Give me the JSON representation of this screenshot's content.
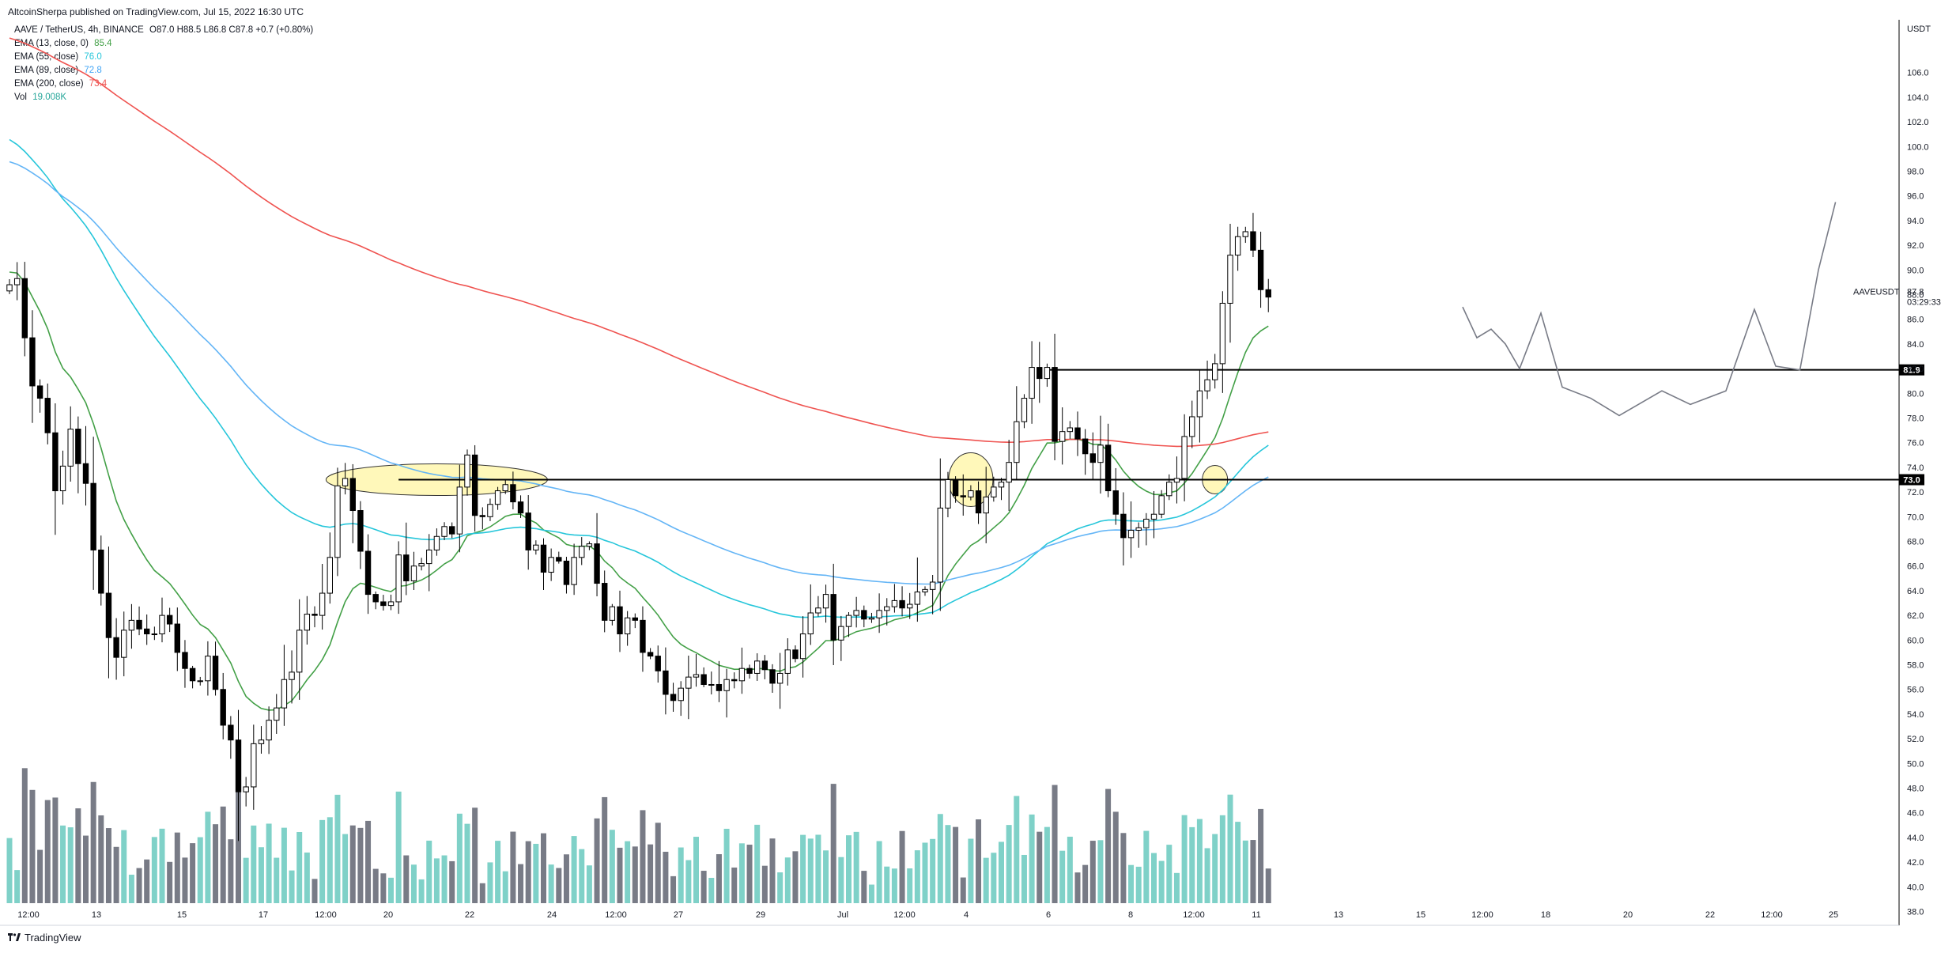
{
  "header": {
    "publish_line": "AltcoinSherpa published on TradingView.com, Jul 15, 2022 16:30 UTC"
  },
  "legend": {
    "symbol": "AAVE / TetherUS, 4h, BINANCE",
    "ohlc": "O87.0  H88.5  L86.8  C87.8  +0.7 (+0.80%)",
    "ema13_label": "EMA (13, close, 0)",
    "ema13_value": "85.4",
    "ema55_label": "EMA (55, close)",
    "ema55_value": "76.0",
    "ema89_label": "EMA (89, close)",
    "ema89_value": "72.8",
    "ema200_label": "EMA (200, close)",
    "ema200_value": "73.4",
    "vol_label": "Vol",
    "vol_value": "19.008K"
  },
  "footer": {
    "brand": "TradingView"
  },
  "colors": {
    "ema13": "#43a047",
    "ema55": "#26c6da",
    "ema89": "#64b5f6",
    "ema200": "#ef5350",
    "vol_up": "#7fd1c8",
    "vol_down": "#787b86",
    "highlight": "#fff59d"
  },
  "chart_data": {
    "type": "candlestick",
    "symbol_tag": "AAVEUSDT",
    "price_label": "87.8",
    "countdown": "03:29:33",
    "axis_unit": "USDT",
    "ylim": [
      37,
      108
    ],
    "y_ticks": [
      "38.0",
      "40.0",
      "42.0",
      "44.0",
      "46.0",
      "48.0",
      "50.0",
      "52.0",
      "54.0",
      "56.0",
      "58.0",
      "60.0",
      "62.0",
      "64.0",
      "66.0",
      "68.0",
      "70.0",
      "72.0",
      "74.0",
      "76.0",
      "78.0",
      "80.0",
      "82.0",
      "84.0",
      "86.0",
      "88.0",
      "90.0",
      "92.0",
      "94.0",
      "96.0",
      "98.0",
      "100.0",
      "102.0",
      "104.0",
      "106.0"
    ],
    "x_ticks": [
      "12:00",
      "13",
      "15",
      "17",
      "12:00",
      "20",
      "22",
      "24",
      "12:00",
      "27",
      "29",
      "Jul",
      "12:00",
      "4",
      "6",
      "8",
      "12:00",
      "11",
      "13",
      "15",
      "12:00",
      "18",
      "20",
      "22",
      "12:00",
      "25"
    ],
    "levels": [
      {
        "label": "81.9",
        "value": 81.9
      },
      {
        "label": "73.0",
        "value": 73.0
      }
    ],
    "close": [
      88.8,
      89.3,
      84.5,
      80.6,
      79.6,
      76.8,
      72.1,
      74.1,
      77.1,
      74.3,
      72.7,
      67.3,
      63.8,
      60.2,
      58.6,
      60.8,
      61.6,
      60.9,
      60.5,
      60.5,
      62.0,
      61.3,
      59.0,
      57.7,
      56.7,
      56.7,
      58.7,
      56.0,
      53.1,
      51.9,
      47.7,
      48.1,
      51.6,
      51.9,
      53.5,
      54.5,
      56.8,
      57.4,
      60.8,
      62.1,
      62.0,
      63.8,
      66.7,
      72.5,
      73.1,
      70.5,
      67.2,
      63.7,
      63.1,
      62.8,
      63.1,
      66.9,
      64.8,
      66.0,
      66.2,
      67.3,
      68.4,
      69.2,
      68.6,
      72.4,
      75.0,
      70.1,
      70.0,
      71.0,
      72.1,
      72.6,
      71.2,
      70.3,
      67.3,
      67.7,
      65.5,
      66.7,
      66.4,
      64.5,
      66.7,
      67.6,
      67.8,
      64.6,
      61.6,
      62.7,
      60.5,
      61.8,
      61.6,
      59.0,
      58.7,
      57.5,
      55.6,
      55.1,
      56.1,
      57.0,
      57.2,
      56.4,
      56.4,
      55.9,
      56.8,
      56.7,
      57.7,
      57.3,
      58.3,
      57.6,
      56.5,
      57.3,
      59.2,
      58.5,
      60.5,
      62.2,
      62.6,
      63.7,
      60.0,
      61.1,
      62.0,
      62.4,
      61.7,
      61.8,
      62.4,
      62.7,
      63.2,
      62.6,
      62.9,
      63.9,
      64.1,
      64.7,
      70.7,
      73.0,
      71.7,
      71.6,
      72.1,
      70.3,
      71.6,
      72.4,
      72.8,
      74.4,
      77.7,
      79.6,
      82.1,
      81.2,
      82.1,
      76.1,
      76.9,
      77.2,
      76.3,
      75.1,
      74.4,
      75.8,
      72.1,
      70.2,
      68.3,
      68.9,
      69.1,
      69.8,
      70.2,
      71.7,
      72.8,
      73.1,
      76.5,
      78.1,
      80.2,
      81.1,
      82.4,
      87.3,
      91.2,
      92.7,
      93.1,
      91.6,
      88.4,
      87.8
    ],
    "volume_scale_note": "relative",
    "ema_start": {
      "ema13": 90.0,
      "ema55": 101.0,
      "ema89": 99.0,
      "ema200": 109.0
    },
    "drawn_projection": "freehand path sketch"
  }
}
